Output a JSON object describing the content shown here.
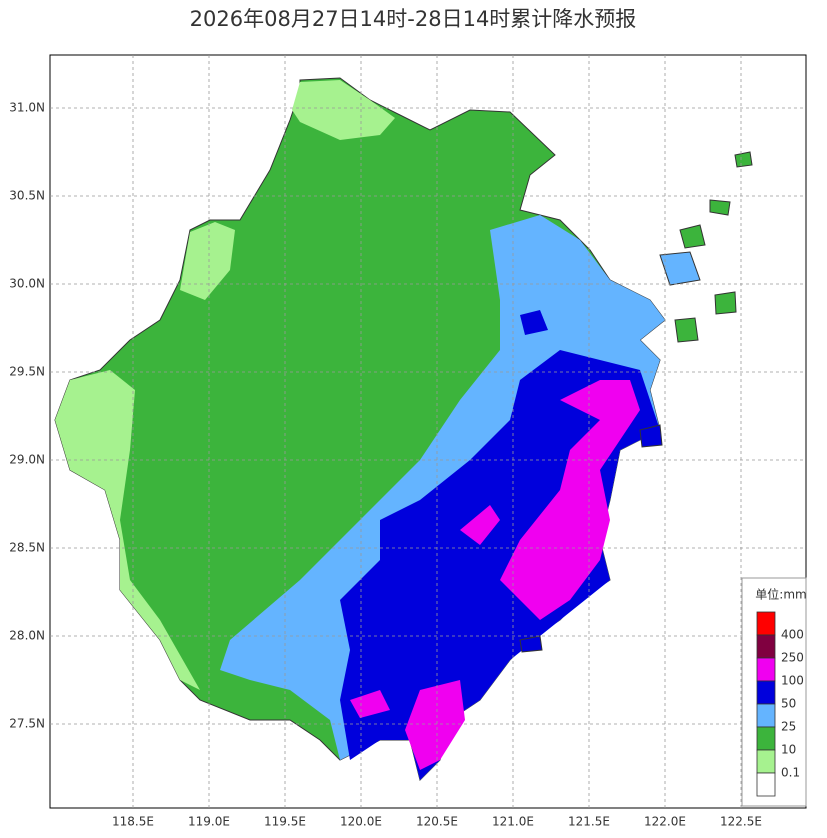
{
  "header": {
    "title": "2026年08月27日14时-28日14时累计降水预报"
  },
  "axes": {
    "x_labels": [
      "118.5E",
      "119.0E",
      "119.5E",
      "120.0E",
      "120.5E",
      "121.0E",
      "121.5E",
      "122.0E",
      "122.5E"
    ],
    "y_labels": [
      "31.0N",
      "30.5N",
      "30.0N",
      "29.5N",
      "29.0N",
      "28.5N",
      "28.0N",
      "27.5N"
    ],
    "grid": true
  },
  "legend": {
    "title": "单位:mm",
    "labels": [
      "400",
      "250",
      "100",
      "50",
      "25",
      "10",
      "0.1"
    ],
    "colors": [
      "#ff0000",
      "#800040",
      "#f000f0",
      "#0000dc",
      "#64b4ff",
      "#3cb43c",
      "#a6f28f",
      "#ffffff"
    ]
  }
}
